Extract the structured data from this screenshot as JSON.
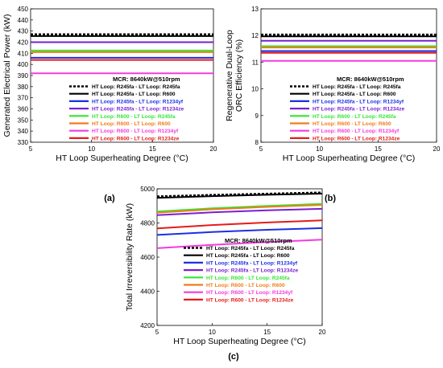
{
  "legend": {
    "title": "MCR: 8640kW@510rpm",
    "entries": [
      {
        "label": "HT Loop: R245fa - LT Loop: R245fa",
        "color": "#000000",
        "dashed": true
      },
      {
        "label": "HT Loop: R245fa - LT Loop: R600",
        "color": "#000000",
        "dashed": false
      },
      {
        "label": "HT Loop: R245fa - LT Loop: R1234yf",
        "color": "#1a2fe6",
        "dashed": false
      },
      {
        "label": "HT Loop: R245fa - LT Loop: R1234ze",
        "color": "#7a1fd0",
        "dashed": false
      },
      {
        "label": "HT Loop: R600 - LT Loop: R245fa",
        "color": "#33e633",
        "dashed": false
      },
      {
        "label": "HT Loop: R600 - LT Loop: R600",
        "color": "#f07c1a",
        "dashed": false
      },
      {
        "label": "HT Loop: R600 - LT Loop: R1234yf",
        "color": "#f23be0",
        "dashed": false
      },
      {
        "label": "HT Loop: R600 - LT Loop: R1234ze",
        "color": "#e61a1a",
        "dashed": false
      }
    ]
  },
  "chart_data": [
    {
      "type": "line",
      "panel_label": "(a)",
      "xlabel": "HT Loop Superheating Degree (°C)",
      "ylabel": "Generated Electrical Power (kW)",
      "xlim": [
        5,
        20
      ],
      "ylim": [
        330,
        450
      ],
      "xticks": [
        5,
        10,
        15,
        20
      ],
      "yticks": [
        330,
        340,
        350,
        360,
        370,
        380,
        390,
        400,
        410,
        420,
        430,
        440,
        450
      ],
      "ytick_labels": [
        "330",
        "340",
        "350",
        "360",
        "370",
        "380",
        "390",
        "400",
        "410",
        "420",
        "430",
        "440",
        "450"
      ],
      "x": [
        5,
        20
      ],
      "series": [
        {
          "name": "HT Loop: R245fa - LT Loop: R245fa",
          "values": [
            427,
            427
          ]
        },
        {
          "name": "HT Loop: R245fa - LT Loop: R600",
          "values": [
            425.5,
            425.5
          ]
        },
        {
          "name": "HT Loop: R245fa - LT Loop: R1234yf",
          "values": [
            406,
            406
          ]
        },
        {
          "name": "HT Loop: R245fa - LT Loop: R1234ze",
          "values": [
            420,
            420
          ]
        },
        {
          "name": "HT Loop: R600 - LT Loop: R245fa",
          "values": [
            412.5,
            412.5
          ]
        },
        {
          "name": "HT Loop: R600 - LT Loop: R600",
          "values": [
            411,
            411
          ]
        },
        {
          "name": "HT Loop: R600 - LT Loop: R1234yf",
          "values": [
            392,
            392
          ]
        },
        {
          "name": "HT Loop: R600 - LT Loop: R1234ze",
          "values": [
            404,
            404
          ]
        }
      ]
    },
    {
      "type": "line",
      "panel_label": "(b)",
      "xlabel": "HT Loop Superheating Degree (°C)",
      "ylabel": "Regenerative Dual-Loop ORC Efficiency (%)",
      "xlim": [
        5,
        20
      ],
      "ylim": [
        8,
        13
      ],
      "xticks": [
        5,
        10,
        15,
        20
      ],
      "yticks": [
        8,
        9,
        10,
        11,
        12,
        13
      ],
      "ytick_labels": [
        "8",
        "9",
        "10",
        "11",
        "12",
        "13"
      ],
      "x": [
        5,
        20
      ],
      "series": [
        {
          "name": "HT Loop: R245fa - LT Loop: R245fa",
          "values": [
            12.03,
            12.03
          ]
        },
        {
          "name": "HT Loop: R245fa - LT Loop: R600",
          "values": [
            11.97,
            11.97
          ]
        },
        {
          "name": "HT Loop: R245fa - LT Loop: R1234yf",
          "values": [
            11.42,
            11.42
          ]
        },
        {
          "name": "HT Loop: R245fa - LT Loop: R1234ze",
          "values": [
            11.8,
            11.8
          ]
        },
        {
          "name": "HT Loop: R600 - LT Loop: R245fa",
          "values": [
            11.6,
            11.6
          ]
        },
        {
          "name": "HT Loop: R600 - LT Loop: R600",
          "values": [
            11.55,
            11.55
          ]
        },
        {
          "name": "HT Loop: R600 - LT Loop: R1234yf",
          "values": [
            11.05,
            11.05
          ]
        },
        {
          "name": "HT Loop: R600 - LT Loop: R1234ze",
          "values": [
            11.35,
            11.35
          ]
        }
      ]
    },
    {
      "type": "line",
      "panel_label": "(c)",
      "xlabel": "HT Loop Superheating Degree (°C)",
      "ylabel": "Total Irreversibility Rate (kW)",
      "xlim": [
        5,
        20
      ],
      "ylim": [
        4200,
        5000
      ],
      "xticks": [
        5,
        10,
        15,
        20
      ],
      "yticks": [
        4200,
        4400,
        4600,
        4800,
        5000
      ],
      "ytick_labels": [
        "4200",
        "4400",
        "4600",
        "4800",
        "5000"
      ],
      "x": [
        5,
        10,
        15,
        20
      ],
      "series": [
        {
          "name": "HT Loop: R245fa - LT Loop: R245fa",
          "values": [
            4955,
            4964,
            4971,
            4978
          ]
        },
        {
          "name": "HT Loop: R245fa - LT Loop: R600",
          "values": [
            4947,
            4957,
            4965,
            4972
          ]
        },
        {
          "name": "HT Loop: R245fa - LT Loop: R1234yf",
          "values": [
            4730,
            4747,
            4760,
            4770
          ]
        },
        {
          "name": "HT Loop: R245fa - LT Loop: R1234ze",
          "values": [
            4846,
            4862,
            4874,
            4883
          ]
        },
        {
          "name": "HT Loop: R600 - LT Loop: R245fa",
          "values": [
            4867,
            4886,
            4900,
            4912
          ]
        },
        {
          "name": "HT Loop: R600 - LT Loop: R600",
          "values": [
            4860,
            4880,
            4894,
            4906
          ]
        },
        {
          "name": "HT Loop: R600 - LT Loop: R1234yf",
          "values": [
            4652,
            4672,
            4688,
            4702
          ]
        },
        {
          "name": "HT Loop: R600 - LT Loop: R1234ze",
          "values": [
            4768,
            4788,
            4803,
            4815
          ]
        }
      ]
    }
  ]
}
